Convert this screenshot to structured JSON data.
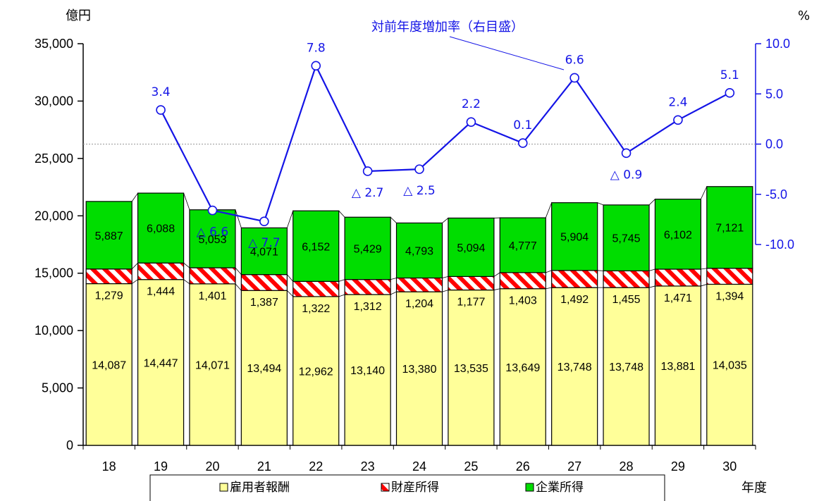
{
  "chart_data": {
    "type": "bar",
    "stacked": true,
    "y_unit_label": "億円",
    "y2_unit_label": "%",
    "x_unit_label": "年度",
    "categories": [
      "18",
      "19",
      "20",
      "21",
      "22",
      "23",
      "24",
      "25",
      "26",
      "27",
      "28",
      "29",
      "30"
    ],
    "ylim": [
      0,
      35000
    ],
    "yticks": [
      "0",
      "5,000",
      "10,000",
      "15,000",
      "20,000",
      "25,000",
      "30,000",
      "35,000"
    ],
    "ytick_values": [
      0,
      5000,
      10000,
      15000,
      20000,
      25000,
      30000,
      35000
    ],
    "y2lim": [
      -30,
      10
    ],
    "y2ticks": [
      "10.0",
      "5.0",
      "0.0",
      "-5.0",
      "-10.0"
    ],
    "y2tick_values": [
      10,
      5,
      0,
      -5,
      -10
    ],
    "series": [
      {
        "name": "雇用者報酬",
        "color": "#ffff99",
        "values": [
          14087,
          14447,
          14071,
          13494,
          12962,
          13140,
          13380,
          13535,
          13649,
          13748,
          13748,
          13881,
          14035
        ],
        "labels": [
          "14,087",
          "14,447",
          "14,071",
          "13,494",
          "12,962",
          "13,140",
          "13,380",
          "13,535",
          "13,649",
          "13,748",
          "13,748",
          "13,881",
          "14,035"
        ]
      },
      {
        "name": "財産所得",
        "color": "#ff0000",
        "pattern": "hatch",
        "values": [
          1279,
          1444,
          1401,
          1387,
          1322,
          1312,
          1204,
          1177,
          1403,
          1492,
          1455,
          1471,
          1394
        ],
        "labels": [
          "1,279",
          "1,444",
          "1,401",
          "1,387",
          "1,322",
          "1,312",
          "1,204",
          "1,177",
          "1,403",
          "1,492",
          "1,455",
          "1,471",
          "1,394"
        ]
      },
      {
        "name": "企業所得",
        "color": "#00dd00",
        "values": [
          5887,
          6088,
          5053,
          4071,
          6152,
          5429,
          4793,
          5094,
          4777,
          5904,
          5745,
          6102,
          7121
        ],
        "labels": [
          "5,887",
          "6,088",
          "5,053",
          "4,071",
          "6,152",
          "5,429",
          "4,793",
          "5,094",
          "4,777",
          "5,904",
          "5,745",
          "6,102",
          "7,121"
        ]
      }
    ],
    "line_series": {
      "name": "対前年度増加率（右目盛）",
      "axis": "right",
      "color": "#1414e6",
      "categories": [
        "19",
        "20",
        "21",
        "22",
        "23",
        "24",
        "25",
        "26",
        "27",
        "28",
        "29",
        "30"
      ],
      "values": [
        3.4,
        -6.6,
        -7.7,
        7.8,
        -2.7,
        -2.5,
        2.2,
        0.1,
        6.6,
        -0.9,
        2.4,
        5.1
      ],
      "labels": [
        "3.4",
        "△ 6.6",
        "△ 7.7",
        "7.8",
        "△ 2.7",
        "△ 2.5",
        "2.2",
        "0.1",
        "6.6",
        "△ 0.9",
        "2.4",
        "5.1"
      ]
    },
    "legend": {
      "position": "bottom",
      "items": [
        "雇用者報酬",
        "財産所得",
        "企業所得"
      ]
    }
  }
}
